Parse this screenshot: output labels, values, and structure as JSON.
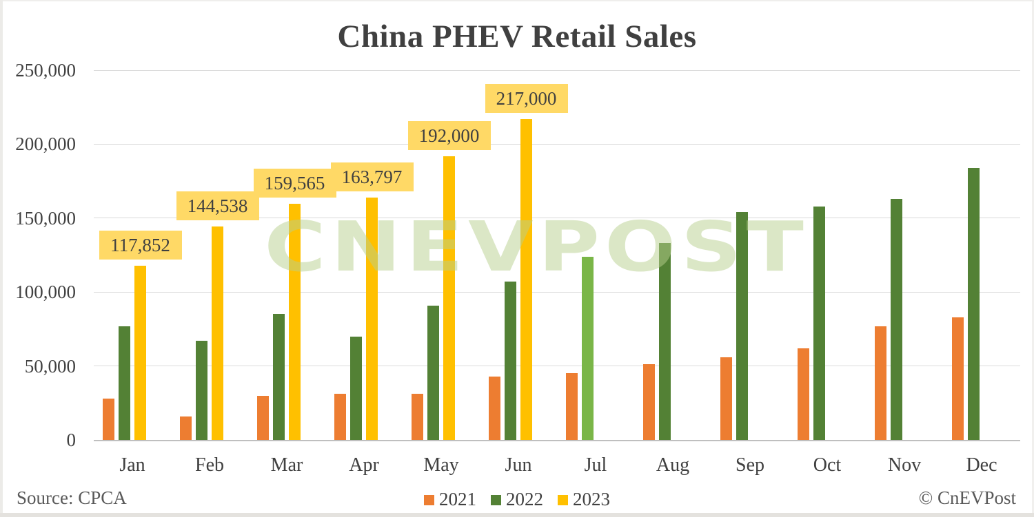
{
  "title": "China PHEV Retail Sales",
  "source_note": "Source: CPCA",
  "copyright_note": "© CnEVPost",
  "watermark_text": "CNEVPOST",
  "colors": {
    "orange_2021": "#ED7D31",
    "green_2022": "#538135",
    "light_green_jul_2022": "#7AB648",
    "yellow_2023": "#FFC000",
    "data_label_bg": "#FFD966",
    "gridline": "#d9d9d9",
    "axis_line": "#bfbfbf",
    "title_text": "#404040",
    "footer_text": "#595959",
    "watermark_green": "rgba(183,207,141,0.5)"
  },
  "legend": {
    "position": "bottom",
    "items": [
      {
        "label": "2021",
        "color": "#ED7D31"
      },
      {
        "label": "2022",
        "color": "#538135"
      },
      {
        "label": "2023",
        "color": "#FFC000"
      }
    ]
  },
  "chart_data": {
    "type": "bar",
    "title": "China PHEV Retail Sales",
    "xlabel": "",
    "ylabel": "",
    "ylim": [
      0,
      250000
    ],
    "grid": true,
    "legend_position": "bottom",
    "categories": [
      "Jan",
      "Feb",
      "Mar",
      "Apr",
      "May",
      "Jun",
      "Jul",
      "Aug",
      "Sep",
      "Oct",
      "Nov",
      "Dec"
    ],
    "yticks": [
      {
        "value": 0,
        "label": "0"
      },
      {
        "value": 50000,
        "label": "50,000"
      },
      {
        "value": 100000,
        "label": "100,000"
      },
      {
        "value": 150000,
        "label": "150,000"
      },
      {
        "value": 200000,
        "label": "200,000"
      },
      {
        "value": 250000,
        "label": "250,000"
      }
    ],
    "series": [
      {
        "name": "2021",
        "color": "#ED7D31",
        "values": [
          28000,
          16000,
          30000,
          31000,
          31000,
          43000,
          45000,
          51000,
          56000,
          62000,
          77000,
          83000
        ]
      },
      {
        "name": "2022",
        "color": "#538135",
        "values": [
          77000,
          67000,
          85000,
          70000,
          91000,
          107000,
          124000,
          133000,
          154000,
          158000,
          163000,
          184000
        ],
        "bar_color_overrides": {
          "Jul": "#7AB648"
        }
      },
      {
        "name": "2023",
        "color": "#FFC000",
        "values": [
          117852,
          144538,
          159565,
          163797,
          192000,
          217000,
          null,
          null,
          null,
          null,
          null,
          null
        ],
        "data_labels": [
          "117,852",
          "144,538",
          "159,565",
          "163,797",
          "192,000",
          "217,000"
        ],
        "data_label_bg": "#FFD966"
      }
    ]
  }
}
